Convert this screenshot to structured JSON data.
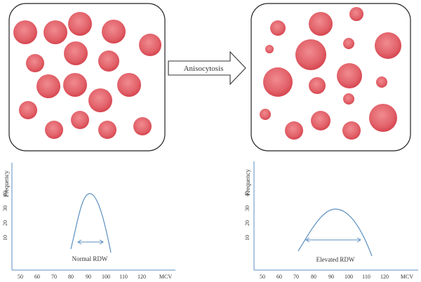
{
  "colors": {
    "cell_fill": "#e2626a",
    "cell_center": "#f08b90",
    "cell_edge": "#d6454f",
    "box_stroke": "#222222",
    "axis": "#5b8fbf",
    "curve": "#5b8fbf",
    "arrow_stroke": "#333333"
  },
  "icons": {
    "process_arrow": "right-block-arrow",
    "width_indicator": "double-headed-arrow"
  },
  "arrow": {
    "label": "Anisocytosis"
  },
  "left_panel": {
    "caption": "Normal RDW",
    "y_label": "Frequency",
    "x_label": "MCV",
    "y_ticks": [
      "10",
      "20",
      "30",
      "40"
    ],
    "x_ticks": [
      "50",
      "60",
      "70",
      "80",
      "90",
      "100",
      "110",
      "120"
    ]
  },
  "right_panel": {
    "caption": "Elevated RDW",
    "y_label": "Frequency",
    "x_label": "MCV",
    "y_ticks": [
      "10",
      "20",
      "30",
      "40"
    ],
    "x_ticks": [
      "50",
      "60",
      "70",
      "80",
      "90",
      "100",
      "110",
      "120"
    ]
  }
}
